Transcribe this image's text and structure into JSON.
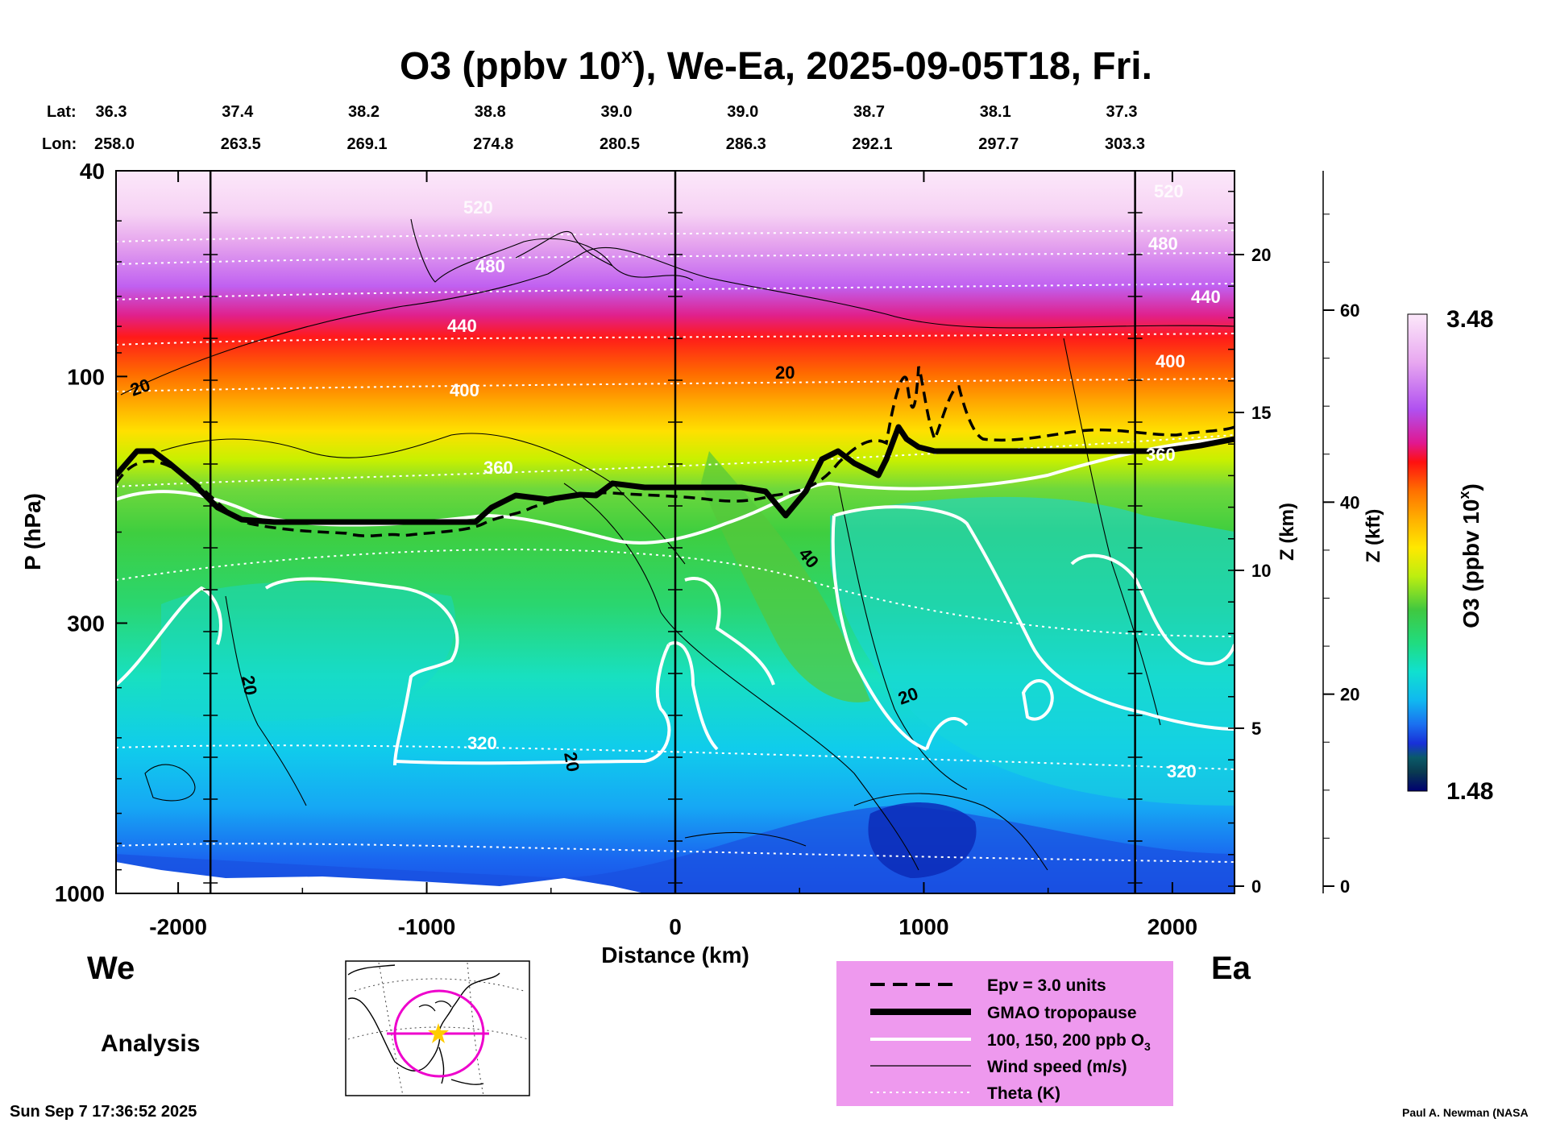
{
  "chart_data": {
    "type": "heatmap",
    "title_parts": [
      "O3 (ppbv 10",
      "x",
      "), We-Ea, 2025-09-05T18, Fri."
    ],
    "lat_label": "Lat:",
    "lon_label": "Lon:",
    "lat_ticks": [
      "36.3",
      "37.4",
      "38.2",
      "38.8",
      "39.0",
      "39.0",
      "38.7",
      "38.1",
      "37.3"
    ],
    "lon_ticks": [
      "258.0",
      "263.5",
      "269.1",
      "274.8",
      "280.5",
      "286.3",
      "292.1",
      "297.7",
      "303.3"
    ],
    "xlabel": "Distance (km)",
    "xlim": [
      -2250,
      2250
    ],
    "x_ticks": [
      -2000,
      -1000,
      0,
      1000,
      2000
    ],
    "ylabel": "P (hPa)",
    "ylim": [
      1000,
      40
    ],
    "y_scale": "log",
    "y_ticks": [
      40,
      100,
      300,
      1000
    ],
    "z_km_label": "Z (km)",
    "z_km_ticks": [
      0,
      5,
      10,
      15,
      20
    ],
    "z_kft_label": "Z (kft)",
    "z_kft_ticks": [
      0,
      20,
      40,
      60
    ],
    "vertical_markers_km": [
      -1870,
      0,
      1850
    ],
    "left_label": "We",
    "right_label": "Ea",
    "footer_left": "Analysis",
    "timestamp": "Sun Sep  7 17:36:52 2025",
    "credit": "Paul A. Newman (NASA",
    "colorbar": {
      "label_parts": [
        "O3 (ppbv 10",
        "x",
        ")"
      ],
      "max_label": "3.48",
      "min_label": "1.48",
      "range": [
        1.48,
        3.48
      ]
    },
    "legend": [
      {
        "label": "Epv = 3.0 units",
        "style": "dashed-black"
      },
      {
        "label": "GMAO tropopause",
        "style": "thick-black"
      },
      {
        "label_parts": [
          "100, 150, 200 ppb O",
          "3"
        ],
        "style": "white"
      },
      {
        "label": "Wind speed (m/s)",
        "style": "thin-black"
      },
      {
        "label": "Theta (K)",
        "style": "dotted-white"
      }
    ],
    "theta_labels": [
      "520",
      "480",
      "440",
      "400",
      "360",
      "320"
    ],
    "wind_labels": [
      "20",
      "40"
    ],
    "colors": {
      "legend_bg": "#ee99ee",
      "map_circle": "#ee00cc",
      "star": "#ffcc00"
    }
  }
}
